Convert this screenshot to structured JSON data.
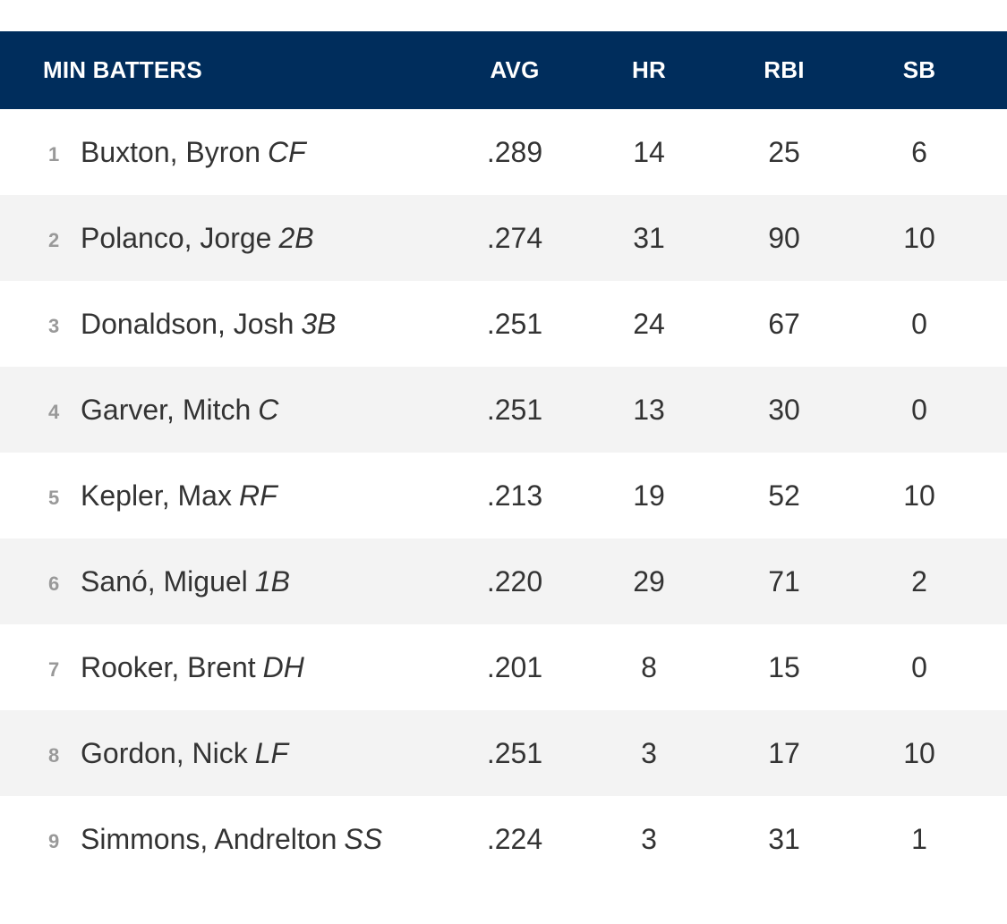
{
  "table": {
    "headers": {
      "name": "MIN BATTERS",
      "avg": "AVG",
      "hr": "HR",
      "rbi": "RBI",
      "sb": "SB"
    },
    "rows": [
      {
        "order": "1",
        "name": "Buxton, Byron",
        "pos": "CF",
        "avg": ".289",
        "hr": "14",
        "rbi": "25",
        "sb": "6"
      },
      {
        "order": "2",
        "name": "Polanco, Jorge",
        "pos": "2B",
        "avg": ".274",
        "hr": "31",
        "rbi": "90",
        "sb": "10"
      },
      {
        "order": "3",
        "name": "Donaldson, Josh",
        "pos": "3B",
        "avg": ".251",
        "hr": "24",
        "rbi": "67",
        "sb": "0"
      },
      {
        "order": "4",
        "name": "Garver, Mitch",
        "pos": "C",
        "avg": ".251",
        "hr": "13",
        "rbi": "30",
        "sb": "0"
      },
      {
        "order": "5",
        "name": "Kepler, Max",
        "pos": "RF",
        "avg": ".213",
        "hr": "19",
        "rbi": "52",
        "sb": "10"
      },
      {
        "order": "6",
        "name": "Sanó, Miguel",
        "pos": "1B",
        "avg": ".220",
        "hr": "29",
        "rbi": "71",
        "sb": "2"
      },
      {
        "order": "7",
        "name": "Rooker, Brent",
        "pos": "DH",
        "avg": ".201",
        "hr": "8",
        "rbi": "15",
        "sb": "0"
      },
      {
        "order": "8",
        "name": "Gordon, Nick",
        "pos": "LF",
        "avg": ".251",
        "hr": "3",
        "rbi": "17",
        "sb": "10"
      },
      {
        "order": "9",
        "name": "Simmons, Andrelton",
        "pos": "SS",
        "avg": ".224",
        "hr": "3",
        "rbi": "31",
        "sb": "1"
      }
    ]
  },
  "colors": {
    "header_bg": "#002d5c",
    "alt_row_bg": "#f3f3f3",
    "text": "#333333",
    "order_num": "#999999"
  }
}
